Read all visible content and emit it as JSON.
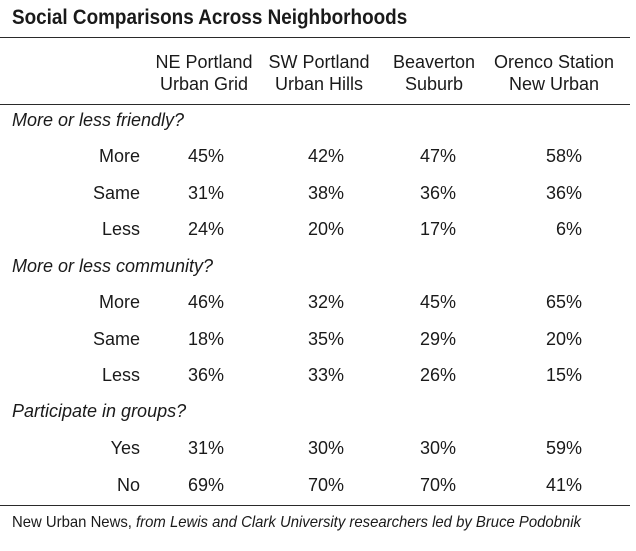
{
  "title": "Social Comparisons Across Neighborhoods",
  "columns": [
    {
      "line1": "NE Portland",
      "line2": "Urban Grid"
    },
    {
      "line1": "SW Portland",
      "line2": "Urban Hills"
    },
    {
      "line1": "Beaverton",
      "line2": "Suburb"
    },
    {
      "line1": "Orenco Station",
      "line2": "New Urban"
    }
  ],
  "sections": [
    {
      "heading": "More or less friendly?",
      "rows": [
        {
          "label": "More",
          "values": [
            "45%",
            "42%",
            "47%",
            "58%"
          ]
        },
        {
          "label": "Same",
          "values": [
            "31%",
            "38%",
            "36%",
            "36%"
          ]
        },
        {
          "label": "Less",
          "values": [
            "24%",
            "20%",
            "17%",
            "6%"
          ]
        }
      ]
    },
    {
      "heading": "More or less community?",
      "rows": [
        {
          "label": "More",
          "values": [
            "46%",
            "32%",
            "45%",
            "65%"
          ]
        },
        {
          "label": "Same",
          "values": [
            "18%",
            "35%",
            "29%",
            "20%"
          ]
        },
        {
          "label": "Less",
          "values": [
            "36%",
            "33%",
            "26%",
            "15%"
          ]
        }
      ]
    },
    {
      "heading": "Participate in groups?",
      "rows": [
        {
          "label": "Yes",
          "values": [
            "31%",
            "30%",
            "30%",
            "59%"
          ]
        },
        {
          "label": "No",
          "values": [
            "69%",
            "70%",
            "70%",
            "41%"
          ]
        }
      ]
    }
  ],
  "source": {
    "publisher": "New Urban News,",
    "credit": "from Lewis and Clark University researchers led by Bruce Podobnik"
  }
}
